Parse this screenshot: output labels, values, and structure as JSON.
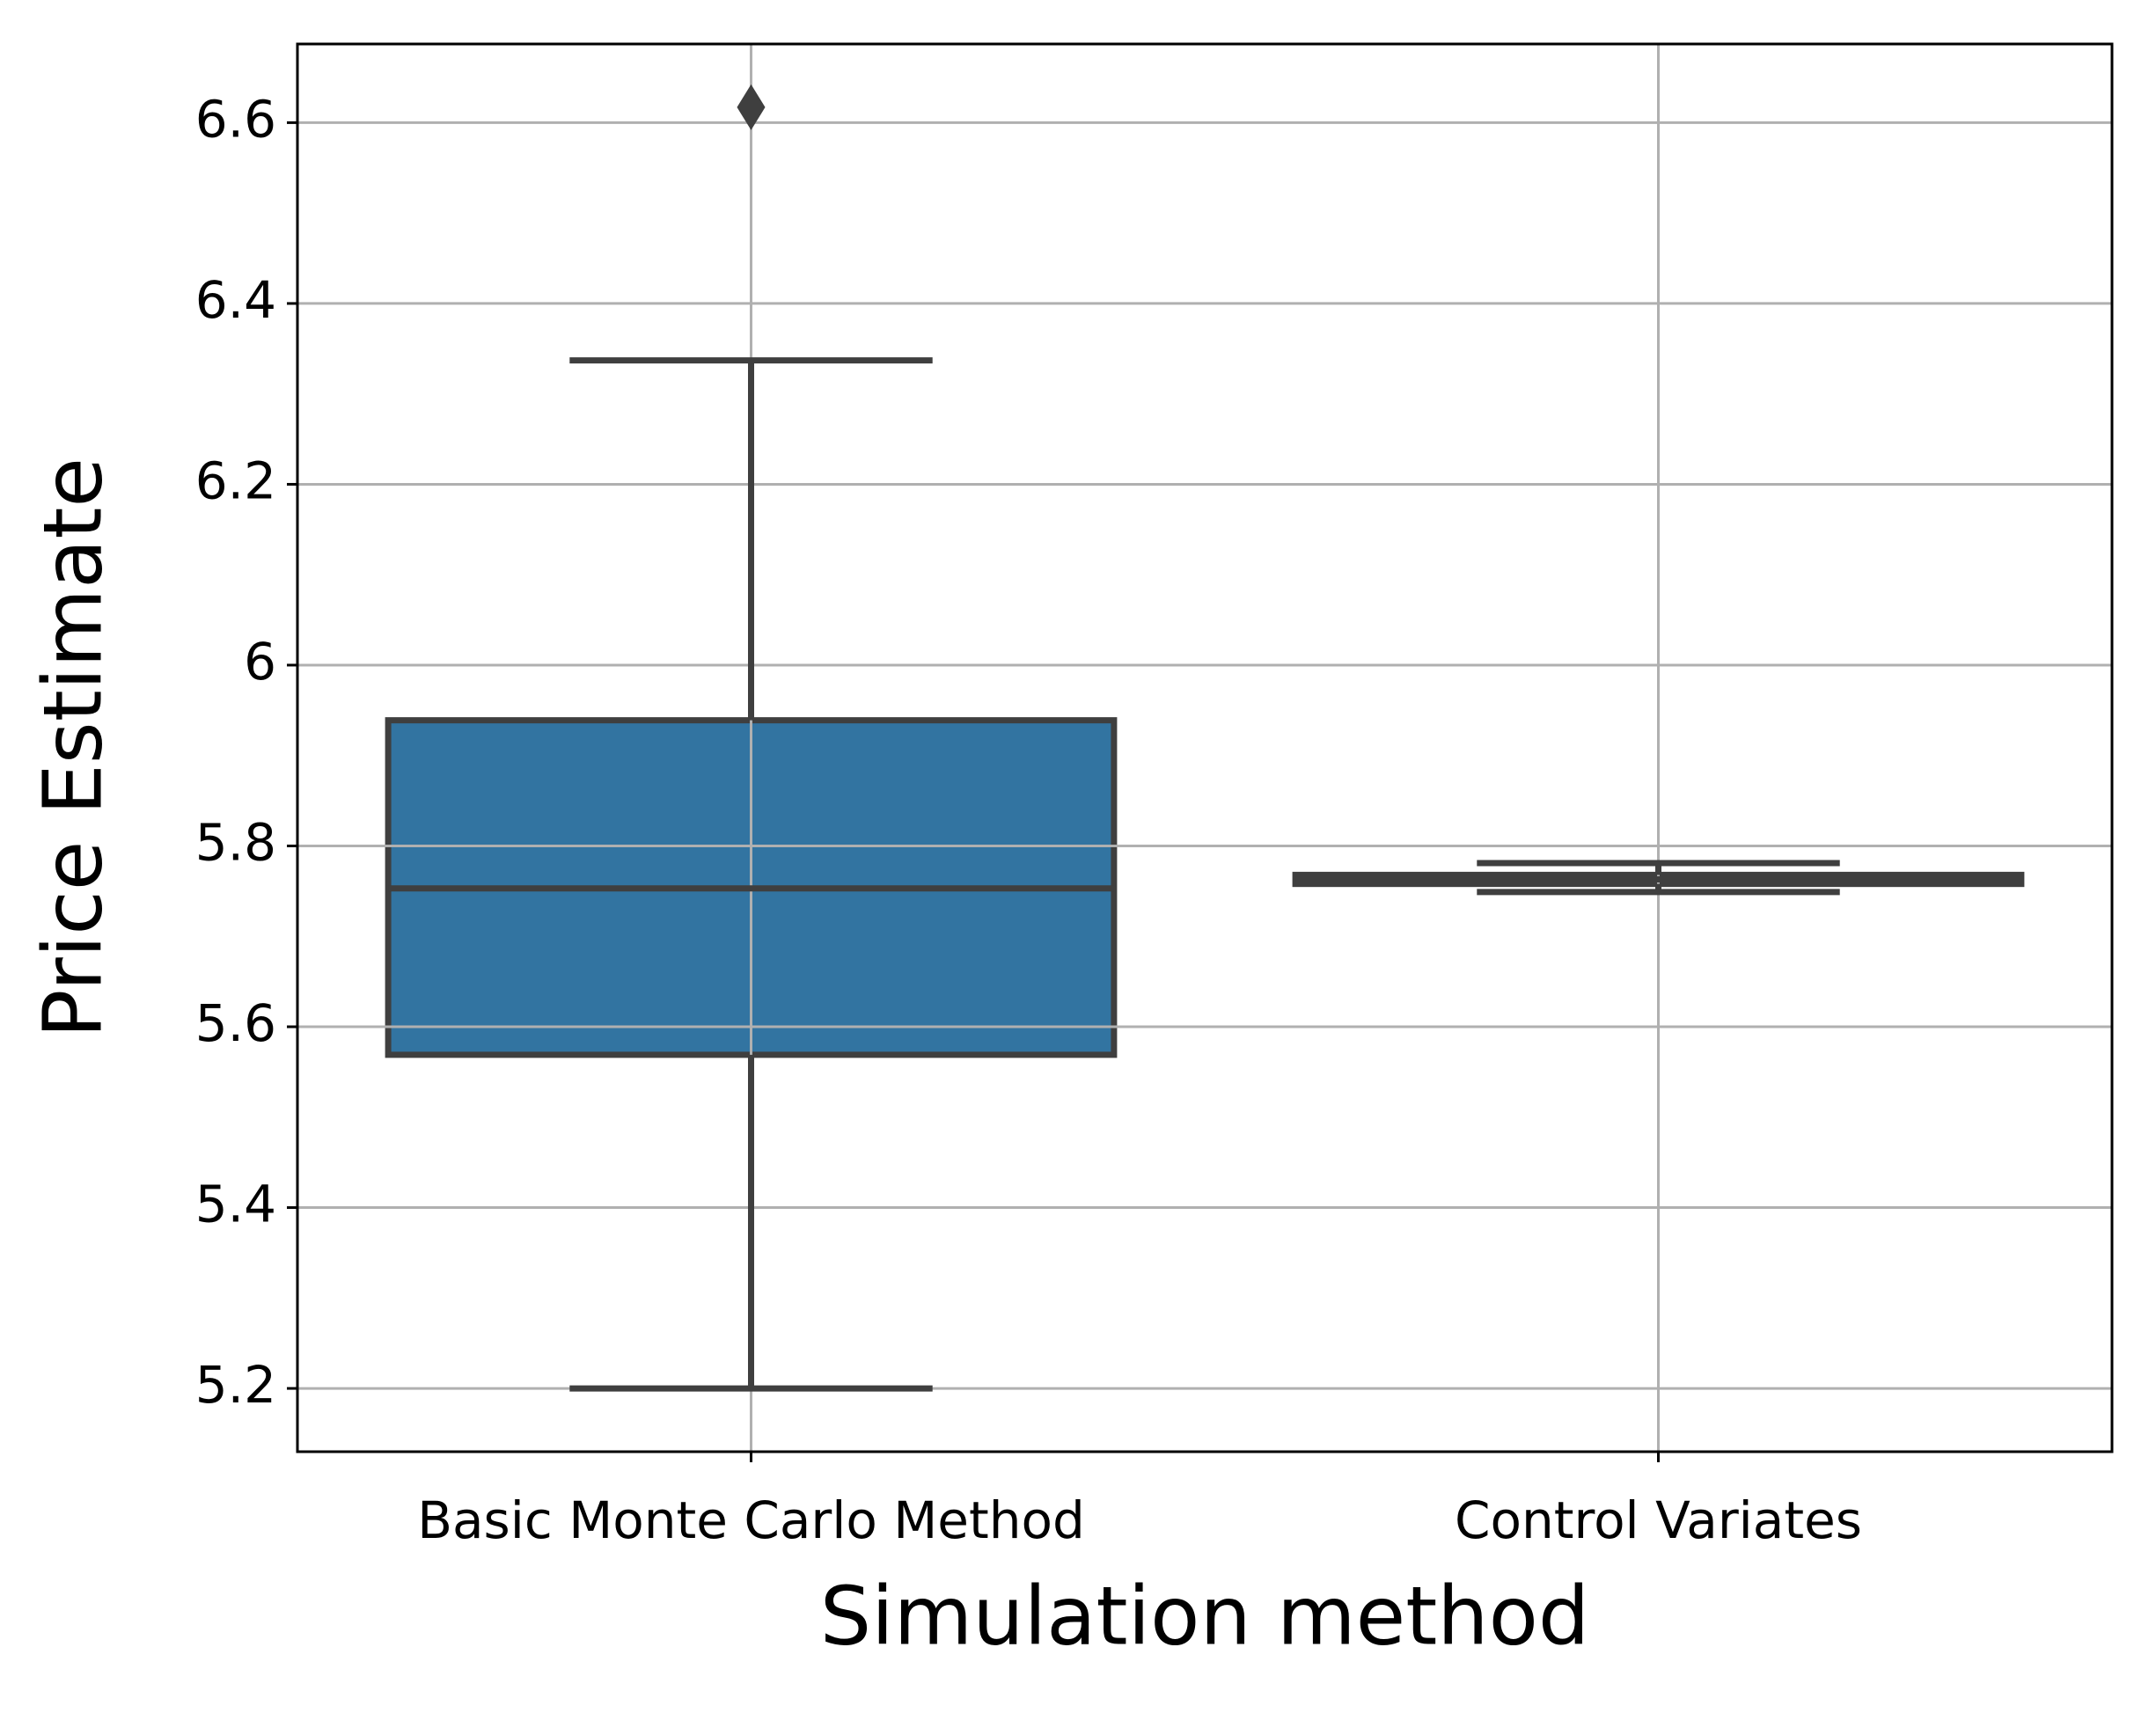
{
  "chart_data": {
    "type": "box",
    "xlabel": "Simulation method",
    "ylabel": "Price Estimate",
    "categories": [
      "Basic Monte Carlo Method",
      "Control Variates"
    ],
    "colors": [
      "#3274a1",
      "#e1812c"
    ],
    "boxes": [
      {
        "whislo": 5.2,
        "q1": 5.569,
        "med": 5.753,
        "q3": 5.939,
        "whishi": 6.337,
        "fliers": [
          6.617
        ]
      },
      {
        "whislo": 5.749,
        "q1": 5.758,
        "med": 5.763,
        "q3": 5.768,
        "whishi": 5.781,
        "fliers": []
      }
    ],
    "ylim": [
      5.13,
      6.687
    ],
    "yticks": [
      5.2,
      5.4,
      5.6,
      5.8,
      6.0,
      6.2,
      6.4,
      6.6
    ],
    "grid": true
  }
}
